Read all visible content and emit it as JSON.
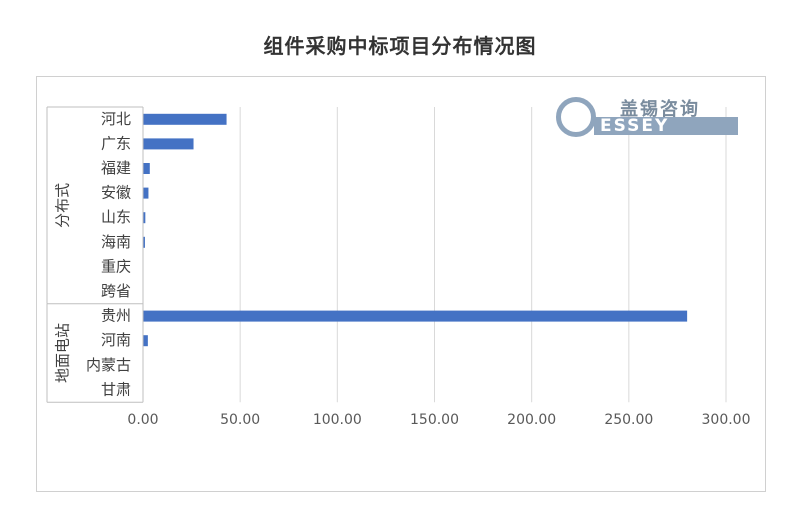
{
  "logo": {
    "cn": "盖锡咨询",
    "en": "ESSEY"
  },
  "chart_data": {
    "type": "bar",
    "orientation": "horizontal",
    "title": "组件采购中标项目分布情况图",
    "xlabel": "",
    "ylabel": "",
    "xlim": [
      0,
      300
    ],
    "x_ticks": [
      "0.00",
      "50.00",
      "100.00",
      "150.00",
      "200.00",
      "250.00",
      "300.00"
    ],
    "grid": true,
    "groups": [
      {
        "name": "分布式",
        "categories": [
          "河北",
          "广东",
          "福建",
          "安徽",
          "山东",
          "海南",
          "重庆",
          "跨省"
        ],
        "values": [
          43,
          26,
          3.5,
          2.8,
          1.2,
          1.0,
          0,
          0
        ]
      },
      {
        "name": "地面电站",
        "categories": [
          "贵州",
          "河南",
          "内蒙古",
          "甘肃"
        ],
        "values": [
          280,
          2.5,
          0,
          0
        ]
      }
    ],
    "color": "#4472c4"
  }
}
